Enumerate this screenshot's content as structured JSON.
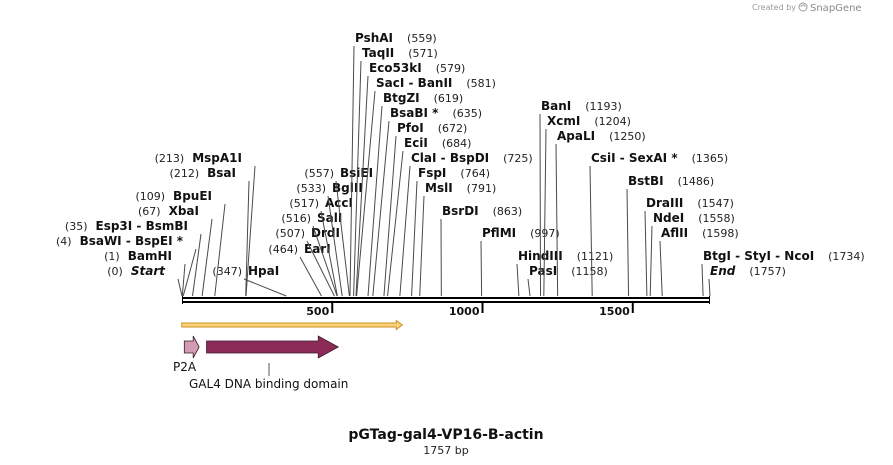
{
  "credit": {
    "prefix": "Created by",
    "brand": "SnapGene"
  },
  "map": {
    "name": "pGTag-gal4-VP16-B-actin",
    "length_label": "1757 bp",
    "length": 1757
  },
  "ticks": [
    {
      "label": "500",
      "value": 500
    },
    {
      "label": "1000",
      "value": 1000
    },
    {
      "label": "1500",
      "value": 1500
    }
  ],
  "enzymes": [
    {
      "parts": [
        "Start"
      ],
      "pos": 0,
      "pos_label": "(0)",
      "italic": true
    },
    {
      "parts": [
        "BamHI"
      ],
      "pos": 1,
      "pos_label": "(1)"
    },
    {
      "parts": [
        "BsaWI",
        "BspEI *"
      ],
      "pos": 4,
      "pos_label": "(4)"
    },
    {
      "parts": [
        "Esp3I",
        "BsmBI"
      ],
      "pos": 35,
      "pos_label": "(35)"
    },
    {
      "parts": [
        "XbaI"
      ],
      "pos": 67,
      "pos_label": "(67)"
    },
    {
      "parts": [
        "BpuEI"
      ],
      "pos": 109,
      "pos_label": "(109)"
    },
    {
      "parts": [
        "BsaI"
      ],
      "pos": 212,
      "pos_label": "(212)"
    },
    {
      "parts": [
        "MspA1I"
      ],
      "pos": 213,
      "pos_label": "(213)"
    },
    {
      "parts": [
        "HpaI"
      ],
      "pos": 347,
      "pos_label": "(347)"
    },
    {
      "parts": [
        "EarI"
      ],
      "pos": 464,
      "pos_label": "(464)"
    },
    {
      "parts": [
        "DrdI"
      ],
      "pos": 507,
      "pos_label": "(507)"
    },
    {
      "parts": [
        "SalI"
      ],
      "pos": 516,
      "pos_label": "(516)"
    },
    {
      "parts": [
        "AccI"
      ],
      "pos": 517,
      "pos_label": "(517)"
    },
    {
      "parts": [
        "BglII"
      ],
      "pos": 533,
      "pos_label": "(533)"
    },
    {
      "parts": [
        "BsiEI"
      ],
      "pos": 557,
      "pos_label": "(557)"
    },
    {
      "parts": [
        "PshAI"
      ],
      "pos": 559,
      "pos_label": "(559)"
    },
    {
      "parts": [
        "TaqII"
      ],
      "pos": 571,
      "pos_label": "(571)"
    },
    {
      "parts": [
        "Eco53kI"
      ],
      "pos": 579,
      "pos_label": "(579)"
    },
    {
      "parts": [
        "SacI",
        "BanII"
      ],
      "pos": 581,
      "pos_label": "(581)"
    },
    {
      "parts": [
        "BtgZI"
      ],
      "pos": 619,
      "pos_label": "(619)"
    },
    {
      "parts": [
        "BsaBI *"
      ],
      "pos": 635,
      "pos_label": "(635)"
    },
    {
      "parts": [
        "PfoI"
      ],
      "pos": 672,
      "pos_label": "(672)"
    },
    {
      "parts": [
        "EciI"
      ],
      "pos": 684,
      "pos_label": "(684)"
    },
    {
      "parts": [
        "ClaI",
        "BspDI"
      ],
      "pos": 725,
      "pos_label": "(725)"
    },
    {
      "parts": [
        "FspI"
      ],
      "pos": 764,
      "pos_label": "(764)"
    },
    {
      "parts": [
        "MslI"
      ],
      "pos": 791,
      "pos_label": "(791)"
    },
    {
      "parts": [
        "BsrDI"
      ],
      "pos": 863,
      "pos_label": "(863)"
    },
    {
      "parts": [
        "PflMI"
      ],
      "pos": 997,
      "pos_label": "(997)"
    },
    {
      "parts": [
        "HindIII"
      ],
      "pos": 1121,
      "pos_label": "(1121)"
    },
    {
      "parts": [
        "PasI"
      ],
      "pos": 1158,
      "pos_label": "(1158)"
    },
    {
      "parts": [
        "BanI"
      ],
      "pos": 1193,
      "pos_label": "(1193)"
    },
    {
      "parts": [
        "XcmI"
      ],
      "pos": 1204,
      "pos_label": "(1204)"
    },
    {
      "parts": [
        "ApaLI"
      ],
      "pos": 1250,
      "pos_label": "(1250)"
    },
    {
      "parts": [
        "CsiI",
        "SexAI *"
      ],
      "pos": 1365,
      "pos_label": "(1365)"
    },
    {
      "parts": [
        "BstBI"
      ],
      "pos": 1486,
      "pos_label": "(1486)"
    },
    {
      "parts": [
        "DraIII"
      ],
      "pos": 1547,
      "pos_label": "(1547)"
    },
    {
      "parts": [
        "NdeI"
      ],
      "pos": 1558,
      "pos_label": "(1558)"
    },
    {
      "parts": [
        "AflII"
      ],
      "pos": 1598,
      "pos_label": "(1598)"
    },
    {
      "parts": [
        "BtgI",
        "StyI",
        "NcoI"
      ],
      "pos": 1734,
      "pos_label": "(1734)"
    },
    {
      "parts": [
        "End"
      ],
      "pos": 1757,
      "pos_label": "(1757)",
      "italic": true
    }
  ],
  "features": [
    {
      "name": "P2A",
      "start": 1,
      "end": 57,
      "color": "#d49bb6"
    },
    {
      "name": "GAL4 DNA binding domain",
      "start": 75,
      "end": 520,
      "color": "#8c2a58"
    }
  ],
  "orf": {
    "start": 1,
    "end": 733,
    "fill": "#ffd27a",
    "edge": "#c79322"
  }
}
